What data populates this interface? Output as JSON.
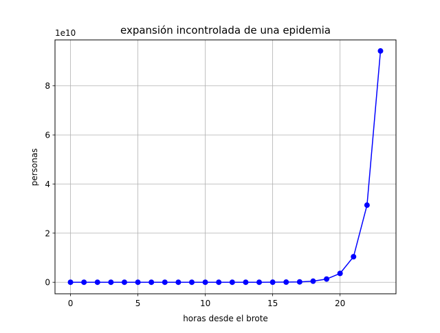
{
  "chart_data": {
    "type": "line",
    "title": "expansión incontrolada de una epidemia",
    "xlabel": "horas desde el brote",
    "ylabel": "personas",
    "y_offset_label": "1e10",
    "xlim": [
      -1.15,
      24.15
    ],
    "ylim": [
      -0.47,
      9.87
    ],
    "y_unit_note": "y values in units of 1e10 personas",
    "x_ticks": [
      0,
      5,
      10,
      15,
      20
    ],
    "x_tick_labels": [
      "0",
      "5",
      "10",
      "15",
      "20"
    ],
    "y_ticks": [
      0,
      2,
      4,
      6,
      8
    ],
    "y_tick_labels": [
      "0",
      "2",
      "4",
      "6",
      "8"
    ],
    "grid": true,
    "series": [
      {
        "color": "#0000ff",
        "marker": "circle",
        "x": [
          0,
          1,
          2,
          3,
          4,
          5,
          6,
          7,
          8,
          9,
          10,
          11,
          12,
          13,
          14,
          15,
          16,
          17,
          18,
          19,
          20,
          21,
          22,
          23
        ],
        "y": [
          0,
          0,
          0,
          0,
          0,
          0,
          0,
          0,
          0,
          0,
          0,
          0,
          0,
          0,
          0.0005,
          0.0017,
          0.0048,
          0.0145,
          0.044,
          0.13,
          0.36,
          1.04,
          3.14,
          9.42
        ]
      }
    ]
  }
}
